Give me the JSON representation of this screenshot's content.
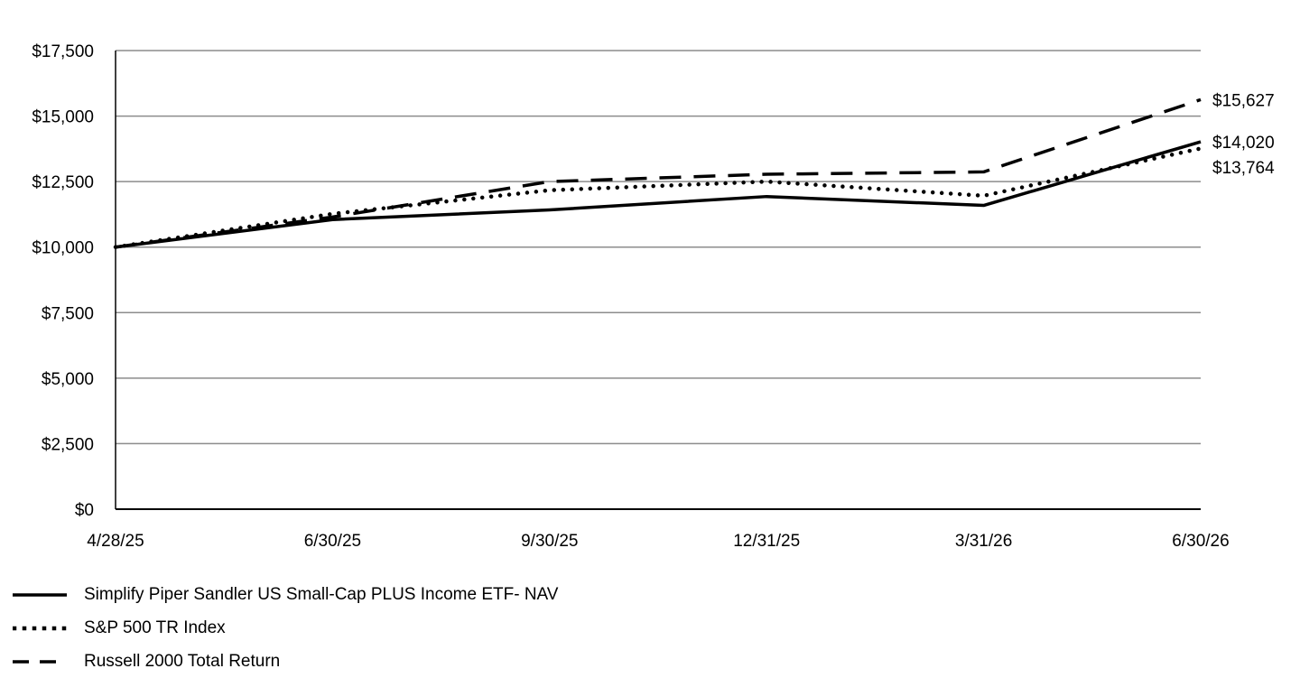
{
  "chart_data": {
    "type": "line",
    "title": "",
    "xlabel": "",
    "ylabel": "",
    "x": [
      "4/28/25",
      "6/30/25",
      "9/30/25",
      "12/31/25",
      "3/31/26",
      "6/30/26"
    ],
    "ylim": [
      0,
      17500
    ],
    "yticks": [
      0,
      2500,
      5000,
      7500,
      10000,
      12500,
      15000,
      17500
    ],
    "ytick_labels": [
      "$0",
      "$2,500",
      "$5,000",
      "$7,500",
      "$10,000",
      "$12,500",
      "$15,000",
      "$17,500"
    ],
    "grid": true,
    "legend_position": "bottom-left",
    "series": [
      {
        "name": "Simplify Piper Sandler US Small-Cap PLUS Income ETF- NAV",
        "style": "solid",
        "color": "#000000",
        "values": [
          10000,
          11050,
          11420,
          11930,
          11590,
          14020
        ],
        "end_label": "$14,020"
      },
      {
        "name": "S&P 500 TR Index",
        "style": "dotted",
        "color": "#000000",
        "values": [
          10000,
          11270,
          12170,
          12500,
          11960,
          13764
        ],
        "end_label": "$13,764"
      },
      {
        "name": "Russell 2000 Total Return",
        "style": "dashed",
        "color": "#000000",
        "values": [
          10000,
          11150,
          12500,
          12780,
          12870,
          15627
        ],
        "end_label": "$15,627"
      }
    ]
  }
}
